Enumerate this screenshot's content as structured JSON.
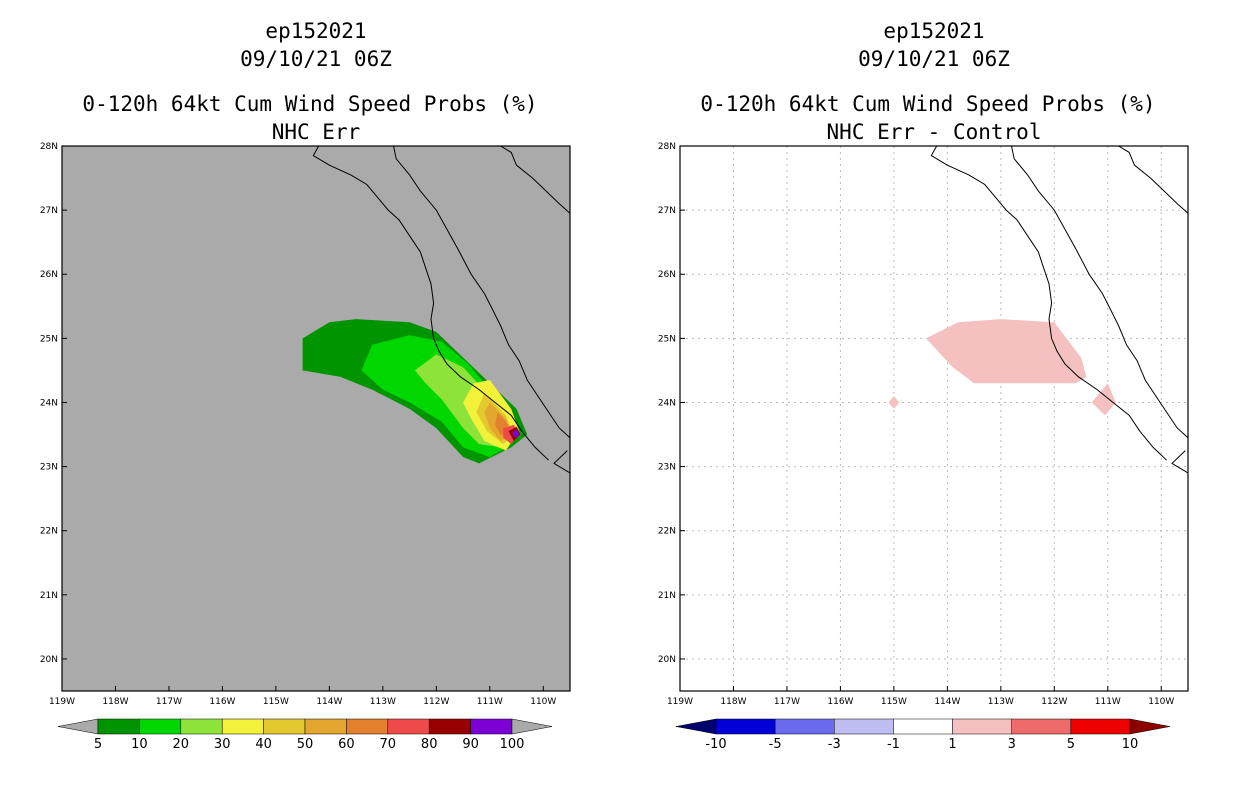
{
  "left_panel": {
    "storm_id": "ep152021",
    "datetime": "09/10/21 06Z",
    "title": "0-120h 64kt Cum Wind Speed Probs (%)",
    "subtitle": "NHC Err"
  },
  "right_panel": {
    "storm_id": "ep152021",
    "datetime": "09/10/21 06Z",
    "title": "0-120h 64kt Cum Wind Speed Probs (%)",
    "subtitle": "NHC Err - Control"
  },
  "chart_data": [
    {
      "type": "heatmap",
      "panel": "left",
      "title": "0-120h 64kt Cum Wind Speed Probs (%)",
      "subtitle": "NHC Err",
      "x_range": [
        -119,
        -109.5
      ],
      "y_range": [
        19.5,
        28
      ],
      "x_ticks": [
        "119W",
        "118W",
        "117W",
        "116W",
        "115W",
        "114W",
        "113W",
        "112W",
        "111W",
        "110W"
      ],
      "y_ticks": [
        "20N",
        "21N",
        "22N",
        "23N",
        "24N",
        "25N",
        "26N",
        "27N",
        "28N"
      ],
      "grid": false,
      "colorbar": {
        "levels": [
          "5",
          "10",
          "20",
          "30",
          "40",
          "50",
          "60",
          "70",
          "80",
          "90",
          "100"
        ],
        "colors": [
          "#009400",
          "#00d700",
          "#8de33a",
          "#f2f23a",
          "#e3c92e",
          "#e3a62e",
          "#e3802e",
          "#ef4a4a",
          "#960000",
          "#7d00d7"
        ],
        "under_color": "#aaaaaa",
        "over_color": "#aaaaaa"
      },
      "contours": [
        {
          "level": 5,
          "color": "#009400",
          "polygon": [
            [
              -114.5,
              25.0
            ],
            [
              -114.0,
              25.25
            ],
            [
              -113.5,
              25.3
            ],
            [
              -112.5,
              25.25
            ],
            [
              -112.0,
              25.1
            ],
            [
              -111.5,
              24.7
            ],
            [
              -111.0,
              24.3
            ],
            [
              -110.5,
              23.9
            ],
            [
              -110.3,
              23.5
            ],
            [
              -110.6,
              23.3
            ],
            [
              -111.2,
              23.05
            ],
            [
              -111.5,
              23.15
            ],
            [
              -112.0,
              23.6
            ],
            [
              -112.5,
              23.9
            ],
            [
              -113.2,
              24.2
            ],
            [
              -113.8,
              24.4
            ],
            [
              -114.5,
              24.5
            ]
          ]
        },
        {
          "level": 10,
          "color": "#00d700",
          "polygon": [
            [
              -113.4,
              24.5
            ],
            [
              -113.2,
              24.9
            ],
            [
              -112.5,
              25.05
            ],
            [
              -111.9,
              24.95
            ],
            [
              -111.4,
              24.6
            ],
            [
              -110.9,
              24.1
            ],
            [
              -110.6,
              23.75
            ],
            [
              -110.4,
              23.5
            ],
            [
              -110.7,
              23.3
            ],
            [
              -111.0,
              23.15
            ],
            [
              -111.5,
              23.3
            ],
            [
              -111.9,
              23.7
            ],
            [
              -112.5,
              24.0
            ],
            [
              -113.0,
              24.2
            ]
          ]
        },
        {
          "level": 20,
          "color": "#8de33a",
          "polygon": [
            [
              -112.4,
              24.5
            ],
            [
              -112.0,
              24.75
            ],
            [
              -111.5,
              24.55
            ],
            [
              -111.0,
              24.1
            ],
            [
              -110.6,
              23.7
            ],
            [
              -110.5,
              23.5
            ],
            [
              -110.8,
              23.3
            ],
            [
              -111.2,
              23.35
            ],
            [
              -111.5,
              23.6
            ],
            [
              -111.9,
              24.05
            ],
            [
              -112.2,
              24.3
            ]
          ]
        },
        {
          "level": 30,
          "color": "#f2f23a",
          "polygon": [
            [
              -111.3,
              24.3
            ],
            [
              -111.0,
              24.35
            ],
            [
              -110.6,
              23.9
            ],
            [
              -110.45,
              23.55
            ],
            [
              -110.7,
              23.25
            ],
            [
              -111.1,
              23.4
            ],
            [
              -111.35,
              23.75
            ],
            [
              -111.5,
              24.0
            ]
          ]
        },
        {
          "level": 40,
          "color": "#e3c92e",
          "polygon": [
            [
              -111.1,
              24.15
            ],
            [
              -110.7,
              23.8
            ],
            [
              -110.55,
              23.5
            ],
            [
              -110.75,
              23.35
            ],
            [
              -111.05,
              23.55
            ],
            [
              -111.25,
              23.85
            ]
          ]
        },
        {
          "level": 50,
          "color": "#e3a62e",
          "polygon": [
            [
              -111.0,
              24.0
            ],
            [
              -110.7,
              23.75
            ],
            [
              -110.6,
              23.5
            ],
            [
              -110.8,
              23.4
            ],
            [
              -111.0,
              23.6
            ],
            [
              -111.1,
              23.85
            ]
          ]
        },
        {
          "level": 60,
          "color": "#e3802e",
          "polygon": [
            [
              -110.85,
              23.85
            ],
            [
              -110.65,
              23.65
            ],
            [
              -110.62,
              23.5
            ],
            [
              -110.8,
              23.5
            ],
            [
              -110.9,
              23.65
            ]
          ]
        },
        {
          "level": 70,
          "color": "#ef4a4a",
          "polygon": [
            [
              -110.75,
              23.6
            ],
            [
              -110.55,
              23.65
            ],
            [
              -110.45,
              23.5
            ],
            [
              -110.6,
              23.35
            ],
            [
              -110.75,
              23.45
            ]
          ]
        },
        {
          "level": 80,
          "color": "#960000",
          "polygon": [
            [
              -110.65,
              23.55
            ],
            [
              -110.5,
              23.62
            ],
            [
              -110.42,
              23.5
            ],
            [
              -110.55,
              23.4
            ]
          ]
        },
        {
          "level": 90,
          "color": "#7d00d7",
          "polygon": [
            [
              -110.58,
              23.52
            ],
            [
              -110.5,
              23.58
            ],
            [
              -110.44,
              23.5
            ],
            [
              -110.52,
              23.44
            ]
          ]
        }
      ]
    },
    {
      "type": "heatmap",
      "panel": "right",
      "title": "0-120h 64kt Cum Wind Speed Probs (%)",
      "subtitle": "NHC Err - Control",
      "x_range": [
        -119,
        -109.5
      ],
      "y_range": [
        19.5,
        28
      ],
      "x_ticks": [
        "119W",
        "118W",
        "117W",
        "116W",
        "115W",
        "114W",
        "113W",
        "112W",
        "111W",
        "110W"
      ],
      "y_ticks": [
        "20N",
        "21N",
        "22N",
        "23N",
        "24N",
        "25N",
        "26N",
        "27N",
        "28N"
      ],
      "grid": true,
      "colorbar": {
        "levels": [
          "-10",
          "-5",
          "-3",
          "-1",
          "1",
          "3",
          "5",
          "10"
        ],
        "colors": [
          "#0000d7",
          "#6a6aef",
          "#bebef2",
          "#ffffff",
          "#f5c0c0",
          "#ef6a6a",
          "#ef0000"
        ],
        "under_color": "#00006e",
        "over_color": "#8c0000"
      },
      "contours": [
        {
          "level": 1,
          "color": "#f5c0c0",
          "polygon": [
            [
              -114.4,
              25.0
            ],
            [
              -113.8,
              25.25
            ],
            [
              -113.0,
              25.3
            ],
            [
              -112.0,
              25.25
            ],
            [
              -111.5,
              24.7
            ],
            [
              -111.4,
              24.4
            ],
            [
              -111.6,
              24.3
            ],
            [
              -112.0,
              24.3
            ],
            [
              -113.0,
              24.3
            ],
            [
              -113.5,
              24.3
            ],
            [
              -113.9,
              24.55
            ]
          ]
        },
        {
          "level": 1,
          "color": "#f5c0c0",
          "polygon": [
            [
              -111.0,
              24.3
            ],
            [
              -110.85,
              24.0
            ],
            [
              -111.05,
              23.8
            ],
            [
              -111.3,
              24.0
            ]
          ]
        },
        {
          "level": 1,
          "color": "#f5c0c0",
          "polygon": [
            [
              -115.0,
              24.1
            ],
            [
              -114.9,
              24.0
            ],
            [
              -115.0,
              23.9
            ],
            [
              -115.1,
              24.0
            ]
          ]
        }
      ]
    }
  ]
}
